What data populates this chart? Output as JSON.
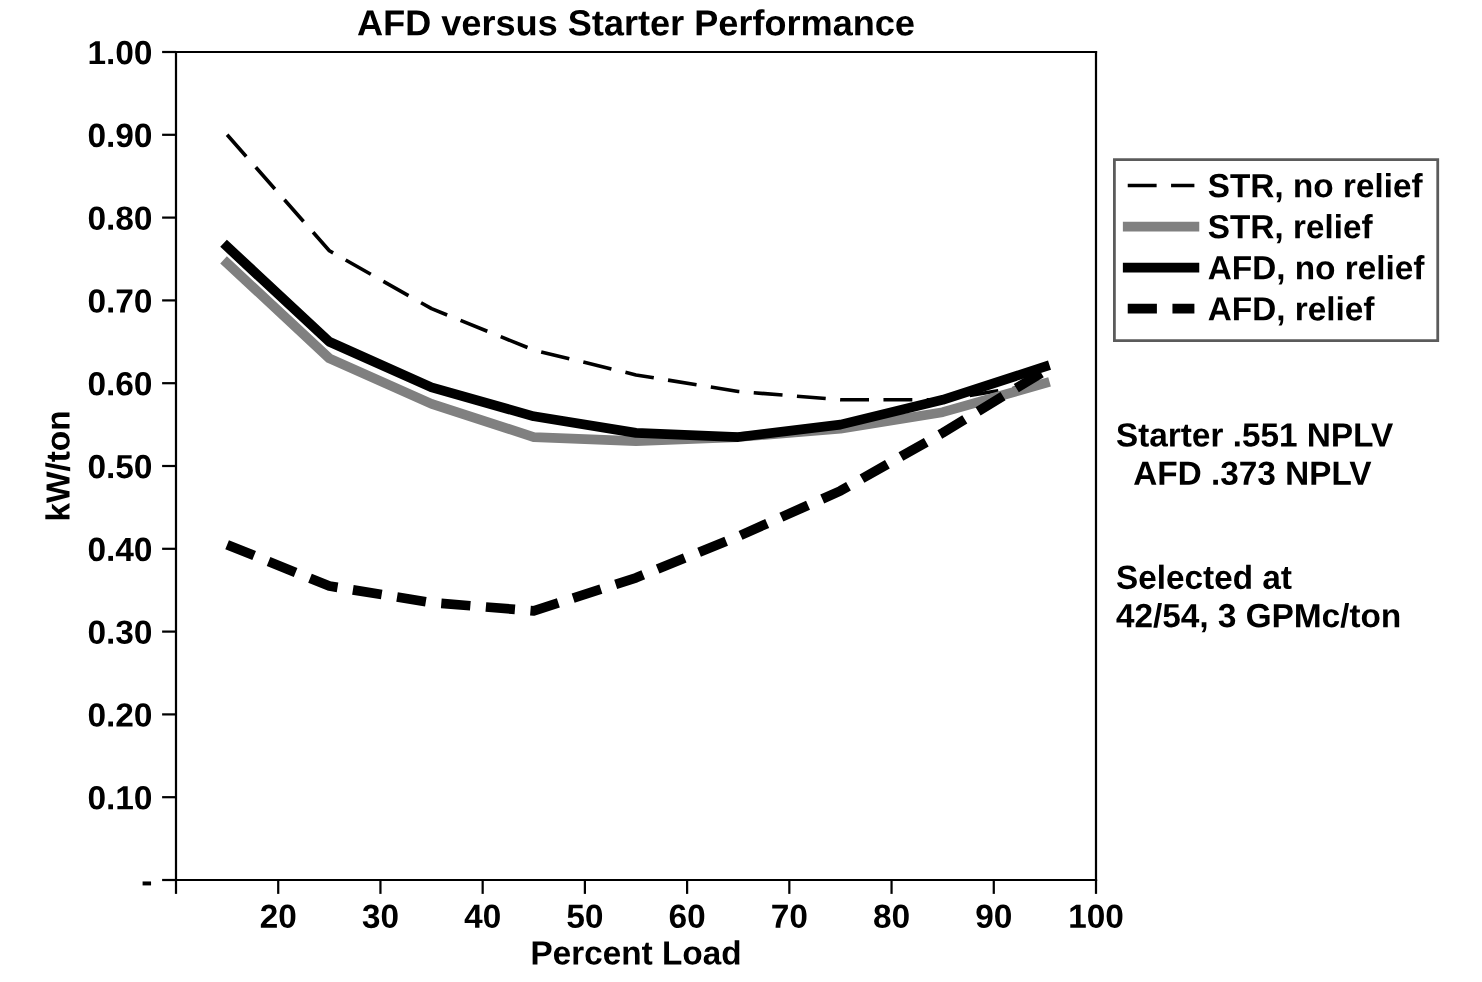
{
  "chart_data": {
    "type": "line",
    "title": "AFD versus Starter Performance",
    "xlabel": "Percent Load",
    "ylabel": "kW/ton",
    "x": [
      15,
      25,
      35,
      45,
      55,
      65,
      75,
      85,
      95
    ],
    "series": [
      {
        "name": "STR, no relief",
        "color": "#000000",
        "line_style": "dashed",
        "values": [
          0.9,
          0.76,
          0.69,
          0.64,
          0.61,
          0.59,
          0.58,
          0.58,
          0.6
        ]
      },
      {
        "name": "STR, relief",
        "color": "#808080",
        "line_style": "solid",
        "values": [
          0.745,
          0.63,
          0.575,
          0.535,
          0.53,
          0.535,
          0.545,
          0.565,
          0.6
        ]
      },
      {
        "name": "AFD, no relief",
        "color": "#000000",
        "line_style": "solid",
        "values": [
          0.765,
          0.65,
          0.595,
          0.56,
          0.54,
          0.535,
          0.55,
          0.58,
          0.62
        ]
      },
      {
        "name": "AFD, relief",
        "color": "#000000",
        "line_style": "dashed",
        "values": [
          0.405,
          0.355,
          0.335,
          0.325,
          0.365,
          0.415,
          0.47,
          0.54,
          0.615
        ]
      }
    ],
    "xlim": [
      10,
      100
    ],
    "xticks": [
      {
        "value": 10,
        "label": null
      },
      20,
      30,
      40,
      50,
      60,
      70,
      80,
      90,
      100
    ],
    "ylim": [
      0,
      1.0
    ],
    "yticks": [
      {
        "value": 0,
        "label": "-"
      },
      {
        "value": 0.1,
        "label": "0.10"
      },
      {
        "value": 0.2,
        "label": "0.20"
      },
      {
        "value": 0.3,
        "label": "0.30"
      },
      {
        "value": 0.4,
        "label": "0.40"
      },
      {
        "value": 0.5,
        "label": "0.50"
      },
      {
        "value": 0.6,
        "label": "0.60"
      },
      {
        "value": 0.7,
        "label": "0.70"
      },
      {
        "value": 0.8,
        "label": "0.80"
      },
      {
        "value": 0.9,
        "label": "0.90"
      },
      {
        "value": 1.0,
        "label": "1.00"
      }
    ],
    "grid": false,
    "legend": "right",
    "marker": "none",
    "annotations": [
      "Starter .551 NPLV\n  AFD .373 NPLV",
      "Selected at\n42/54, 3 GPMc/ton"
    ]
  }
}
